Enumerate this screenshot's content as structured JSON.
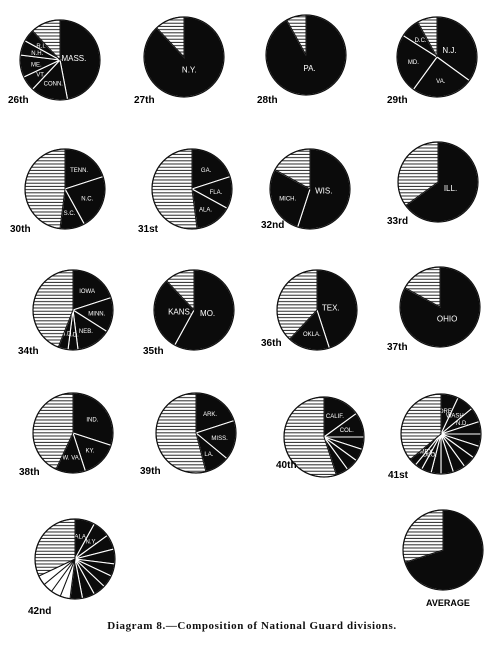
{
  "caption": "Diagram 8.—Composition of National Guard divisions.",
  "chart_data": [
    {
      "type": "pie",
      "division": "26th",
      "slices": [
        {
          "label": "MASS.",
          "value": 0.47,
          "fill": "black"
        },
        {
          "label": "CONN.",
          "value": 0.15,
          "fill": "black"
        },
        {
          "label": "VT.",
          "value": 0.06,
          "fill": "black"
        },
        {
          "label": "ME.",
          "value": 0.09,
          "fill": "black"
        },
        {
          "label": "N.H.",
          "value": 0.06,
          "fill": "black"
        },
        {
          "label": "R.I.",
          "value": 0.05,
          "fill": "black"
        },
        {
          "label": "",
          "value": 0.12,
          "fill": "hatch"
        }
      ]
    },
    {
      "type": "pie",
      "division": "27th",
      "slices": [
        {
          "label": "N.Y.",
          "value": 0.88,
          "fill": "black"
        },
        {
          "label": "",
          "value": 0.12,
          "fill": "hatch"
        }
      ]
    },
    {
      "type": "pie",
      "division": "28th",
      "slices": [
        {
          "label": "PA.",
          "value": 0.92,
          "fill": "black"
        },
        {
          "label": "",
          "value": 0.08,
          "fill": "hatch"
        }
      ]
    },
    {
      "type": "pie",
      "division": "29th",
      "slices": [
        {
          "label": "N.J.",
          "value": 0.35,
          "fill": "black"
        },
        {
          "label": "VA.",
          "value": 0.25,
          "fill": "black"
        },
        {
          "label": "MD.",
          "value": 0.24,
          "fill": "black"
        },
        {
          "label": "D.C.",
          "value": 0.08,
          "fill": "black"
        },
        {
          "label": "",
          "value": 0.08,
          "fill": "hatch"
        }
      ]
    },
    {
      "type": "pie",
      "division": "30th",
      "slices": [
        {
          "label": "TENN.",
          "value": 0.2,
          "fill": "black"
        },
        {
          "label": "N.C.",
          "value": 0.22,
          "fill": "black"
        },
        {
          "label": "S.C.",
          "value": 0.1,
          "fill": "black"
        },
        {
          "label": "",
          "value": 0.48,
          "fill": "hatch"
        }
      ]
    },
    {
      "type": "pie",
      "division": "31st",
      "slices": [
        {
          "label": "GA.",
          "value": 0.2,
          "fill": "black"
        },
        {
          "label": "FLA.",
          "value": 0.13,
          "fill": "black"
        },
        {
          "label": "ALA.",
          "value": 0.15,
          "fill": "black"
        },
        {
          "label": "",
          "value": 0.52,
          "fill": "hatch"
        }
      ]
    },
    {
      "type": "pie",
      "division": "32nd",
      "slices": [
        {
          "label": "WIS.",
          "value": 0.55,
          "fill": "black"
        },
        {
          "label": "MICH.",
          "value": 0.28,
          "fill": "black"
        },
        {
          "label": "",
          "value": 0.17,
          "fill": "hatch"
        }
      ]
    },
    {
      "type": "pie",
      "division": "33rd",
      "slices": [
        {
          "label": "ILL.",
          "value": 0.65,
          "fill": "black"
        },
        {
          "label": "",
          "value": 0.35,
          "fill": "hatch"
        }
      ]
    },
    {
      "type": "pie",
      "division": "34th",
      "slices": [
        {
          "label": "IOWA",
          "value": 0.2,
          "fill": "black"
        },
        {
          "label": "MINN.",
          "value": 0.14,
          "fill": "black"
        },
        {
          "label": "NEB.",
          "value": 0.14,
          "fill": "black"
        },
        {
          "label": "S.D.",
          "value": 0.04,
          "fill": "black"
        },
        {
          "label": "N.D.",
          "value": 0.04,
          "fill": "black"
        },
        {
          "label": "",
          "value": 0.44,
          "fill": "hatch"
        }
      ]
    },
    {
      "type": "pie",
      "division": "35th",
      "slices": [
        {
          "label": "MO.",
          "value": 0.58,
          "fill": "black"
        },
        {
          "label": "KANS.",
          "value": 0.3,
          "fill": "black"
        },
        {
          "label": "",
          "value": 0.12,
          "fill": "hatch"
        }
      ]
    },
    {
      "type": "pie",
      "division": "36th",
      "slices": [
        {
          "label": "TEX.",
          "value": 0.45,
          "fill": "black"
        },
        {
          "label": "OKLA.",
          "value": 0.17,
          "fill": "black"
        },
        {
          "label": "",
          "value": 0.38,
          "fill": "hatch"
        }
      ]
    },
    {
      "type": "pie",
      "division": "37th",
      "slices": [
        {
          "label": "OHIO",
          "value": 0.83,
          "fill": "black"
        },
        {
          "label": "",
          "value": 0.17,
          "fill": "hatch"
        }
      ]
    },
    {
      "type": "pie",
      "division": "38th",
      "slices": [
        {
          "label": "IND.",
          "value": 0.3,
          "fill": "black"
        },
        {
          "label": "KY.",
          "value": 0.15,
          "fill": "black"
        },
        {
          "label": "W. VA.",
          "value": 0.12,
          "fill": "black"
        },
        {
          "label": "",
          "value": 0.43,
          "fill": "hatch"
        }
      ]
    },
    {
      "type": "pie",
      "division": "39th",
      "slices": [
        {
          "label": "ARK.",
          "value": 0.2,
          "fill": "black"
        },
        {
          "label": "MISS.",
          "value": 0.16,
          "fill": "black"
        },
        {
          "label": "LA.",
          "value": 0.1,
          "fill": "black"
        },
        {
          "label": "",
          "value": 0.54,
          "fill": "hatch"
        }
      ]
    },
    {
      "type": "pie",
      "division": "40th",
      "slices": [
        {
          "label": "CALIF.",
          "value": 0.15,
          "fill": "black"
        },
        {
          "label": "COL.",
          "value": 0.1,
          "fill": "black"
        },
        {
          "label": "",
          "value": 0.05,
          "fill": "black"
        },
        {
          "label": "",
          "value": 0.05,
          "fill": "black"
        },
        {
          "label": "",
          "value": 0.05,
          "fill": "black"
        },
        {
          "label": "",
          "value": 0.05,
          "fill": "black"
        },
        {
          "label": "",
          "value": 0.55,
          "fill": "hatch"
        }
      ]
    },
    {
      "type": "pie",
      "division": "41st",
      "slices": [
        {
          "label": "ORE.",
          "value": 0.07,
          "fill": "black"
        },
        {
          "label": "WASH.",
          "value": 0.07,
          "fill": "black"
        },
        {
          "label": "N.D.",
          "value": 0.06,
          "fill": "black"
        },
        {
          "label": "",
          "value": 0.05,
          "fill": "black"
        },
        {
          "label": "",
          "value": 0.05,
          "fill": "black"
        },
        {
          "label": "",
          "value": 0.05,
          "fill": "black"
        },
        {
          "label": "",
          "value": 0.05,
          "fill": "black"
        },
        {
          "label": "",
          "value": 0.05,
          "fill": "black"
        },
        {
          "label": "",
          "value": 0.05,
          "fill": "black"
        },
        {
          "label": "",
          "value": 0.04,
          "fill": "black"
        },
        {
          "label": "",
          "value": 0.04,
          "fill": "black"
        },
        {
          "label": "COLO.",
          "value": 0.03,
          "fill": "black"
        },
        {
          "label": "N.MEX.",
          "value": 0.03,
          "fill": "black"
        },
        {
          "label": "",
          "value": 0.36,
          "fill": "hatch"
        }
      ]
    },
    {
      "type": "pie",
      "division": "42nd",
      "slices": [
        {
          "label": "ALA.",
          "value": 0.08,
          "fill": "black"
        },
        {
          "label": "N.Y.",
          "value": 0.07,
          "fill": "black"
        },
        {
          "label": "",
          "value": 0.06,
          "fill": "black"
        },
        {
          "label": "",
          "value": 0.06,
          "fill": "black"
        },
        {
          "label": "",
          "value": 0.05,
          "fill": "black"
        },
        {
          "label": "",
          "value": 0.05,
          "fill": "black"
        },
        {
          "label": "",
          "value": 0.05,
          "fill": "black"
        },
        {
          "label": "",
          "value": 0.05,
          "fill": "black"
        },
        {
          "label": "",
          "value": 0.05,
          "fill": "black"
        },
        {
          "label": "",
          "value": 0.04,
          "fill": "white"
        },
        {
          "label": "",
          "value": 0.04,
          "fill": "white"
        },
        {
          "label": "",
          "value": 0.04,
          "fill": "white"
        },
        {
          "label": "",
          "value": 0.04,
          "fill": "white"
        },
        {
          "label": "",
          "value": 0.32,
          "fill": "hatch"
        }
      ]
    },
    {
      "type": "pie",
      "division": "AVERAGE",
      "slices": [
        {
          "label": "",
          "value": 0.7,
          "fill": "black"
        },
        {
          "label": "",
          "value": 0.3,
          "fill": "hatch"
        }
      ]
    }
  ]
}
